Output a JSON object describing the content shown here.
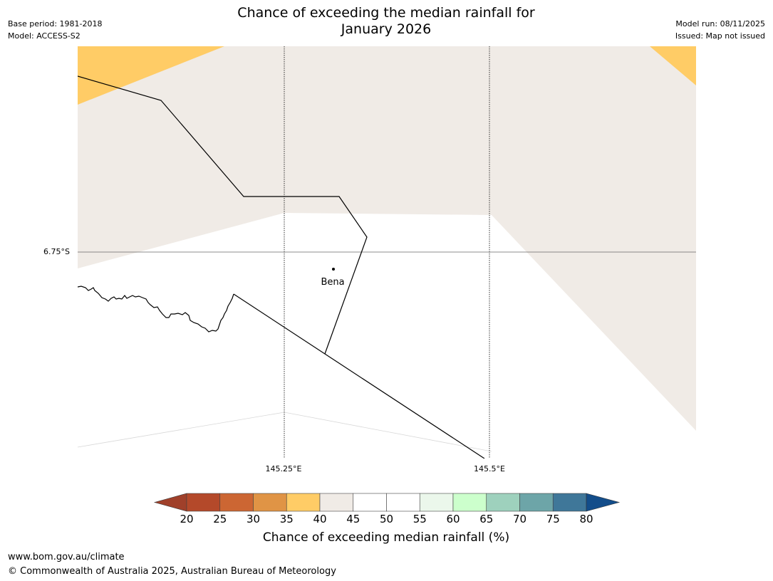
{
  "header": {
    "title_line1": "Chance of exceeding the median rainfall for",
    "title_line2": "January 2026",
    "base_period": "Base period: 1981-2018",
    "model": "Model: ACCESS-S2",
    "model_run": "Model run: 08/11/2025",
    "issued": "Issued: Map not issued"
  },
  "map": {
    "lat_labels": [
      "6.75°S"
    ],
    "lon_labels": [
      "145.25°E",
      "145.5°E"
    ],
    "places": [
      {
        "name": "Bena"
      }
    ],
    "colors": {
      "c35_40": "#ffcc66",
      "c40_45": "#f0ebe6",
      "c45_55": "#ffffff",
      "boundary": "#000000",
      "gridline": "#000000"
    }
  },
  "colorbar": {
    "ticks": [
      "20",
      "25",
      "30",
      "35",
      "40",
      "45",
      "50",
      "55",
      "60",
      "65",
      "70",
      "75",
      "80"
    ],
    "colors": [
      "#a0402a",
      "#b4492a",
      "#cc6633",
      "#e09445",
      "#ffcc66",
      "#f0ebe6",
      "#ffffff",
      "#ffffff",
      "#ebf7eb",
      "#ccffcc",
      "#9ed1bd",
      "#6da5a8",
      "#3f7799",
      "#134d8a"
    ],
    "label": "Chance of exceeding median rainfall (%)"
  },
  "footer": {
    "website": "www.bom.gov.au/climate",
    "copyright": "© Commonwealth of Australia 2025, Australian Bureau of Meteorology"
  }
}
